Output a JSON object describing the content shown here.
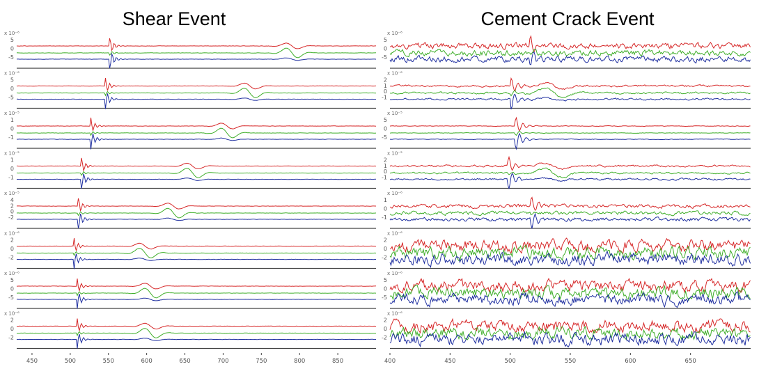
{
  "chart_data": [
    {
      "type": "line",
      "title": "Shear Event",
      "xlim": [
        430,
        900
      ],
      "x_ticks": [
        "450",
        "500",
        "550",
        "600",
        "650",
        "700",
        "750",
        "800",
        "850"
      ],
      "x_tick_values": [
        450,
        500,
        550,
        600,
        650,
        700,
        750,
        800,
        850
      ],
      "series_colors": {
        "red": "#d62728",
        "green": "#3fae2a",
        "blue": "#1f2fa0"
      },
      "panels": [
        {
          "scale": "x 10⁻⁶",
          "y_ticks": [
            "5",
            "0",
            "-5"
          ],
          "first_arrival": 552,
          "second_arrival": 790,
          "noise": 0.06
        },
        {
          "scale": "x 10⁻⁶",
          "y_ticks": [
            "5",
            "0",
            "-5"
          ],
          "first_arrival": 546,
          "second_arrival": 735,
          "noise": 0.06
        },
        {
          "scale": "x 10⁻⁵",
          "y_ticks": [
            "1",
            "0",
            "-1"
          ],
          "first_arrival": 527,
          "second_arrival": 705,
          "noise": 0.06
        },
        {
          "scale": "x 10⁻⁵",
          "y_ticks": [
            "1",
            "0",
            "-1"
          ],
          "first_arrival": 515,
          "second_arrival": 660,
          "noise": 0.06
        },
        {
          "scale": "x 10⁻⁵",
          "y_ticks": [
            "4",
            "2",
            "0",
            "-2"
          ],
          "first_arrival": 511,
          "second_arrival": 635,
          "noise": 0.06
        },
        {
          "scale": "x 10⁻⁶",
          "y_ticks": [
            "2",
            "0",
            "-2"
          ],
          "first_arrival": 505,
          "second_arrival": 598,
          "noise": 0.06
        },
        {
          "scale": "x 10⁻⁶",
          "y_ticks": [
            "5",
            "0",
            "-5"
          ],
          "first_arrival": 509,
          "second_arrival": 605,
          "noise": 0.06
        },
        {
          "scale": "x 10⁻⁶",
          "y_ticks": [
            "2",
            "0",
            "-2"
          ],
          "first_arrival": 509,
          "second_arrival": 605,
          "noise": 0.06
        }
      ]
    },
    {
      "type": "line",
      "title": "Cement Crack Event",
      "xlim": [
        400,
        700
      ],
      "x_ticks": [
        "400",
        "450",
        "500",
        "550",
        "600",
        "650"
      ],
      "x_tick_values": [
        400,
        450,
        500,
        550,
        600,
        650
      ],
      "series_colors": {
        "red": "#d62728",
        "green": "#3fae2a",
        "blue": "#1f2fa0"
      },
      "panels": [
        {
          "scale": "x 10⁻⁶",
          "y_ticks": [
            "5",
            "0",
            "-5"
          ],
          "first_arrival": 517,
          "second_arrival": null,
          "noise": 0.55
        },
        {
          "scale": "x 10⁻⁶",
          "y_ticks": [
            "2",
            "1",
            "0",
            "-1"
          ],
          "first_arrival": 501,
          "second_arrival": 537,
          "noise": 0.18
        },
        {
          "scale": "x 10⁻⁵",
          "y_ticks": [
            "5",
            "0",
            "-5"
          ],
          "first_arrival": 505,
          "second_arrival": null,
          "noise": 0.05
        },
        {
          "scale": "x 10⁻⁵",
          "y_ticks": [
            "2",
            "1",
            "0",
            "-1"
          ],
          "first_arrival": 499,
          "second_arrival": 536,
          "noise": 0.18
        },
        {
          "scale": "x 10⁻⁶",
          "y_ticks": [
            "1",
            "0",
            "-1"
          ],
          "first_arrival": 518,
          "second_arrival": null,
          "noise": 0.35
        },
        {
          "scale": "x 10⁻⁶",
          "y_ticks": [
            "2",
            "0",
            "-2"
          ],
          "first_arrival": null,
          "second_arrival": null,
          "noise": 1.1
        },
        {
          "scale": "x 10⁻⁶",
          "y_ticks": [
            "5",
            "0",
            "-5"
          ],
          "first_arrival": null,
          "second_arrival": null,
          "noise": 1.1
        },
        {
          "scale": "x 10⁻⁶",
          "y_ticks": [
            "2",
            "0",
            "-2"
          ],
          "first_arrival": null,
          "second_arrival": null,
          "noise": 1.1
        }
      ]
    }
  ]
}
